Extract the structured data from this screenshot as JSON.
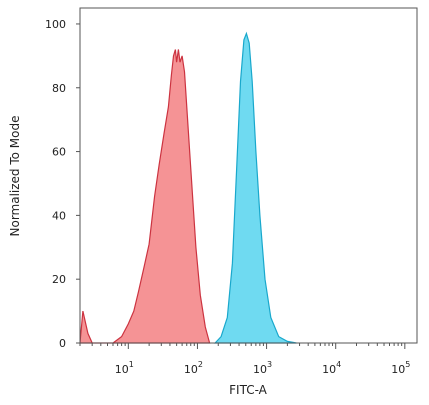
{
  "chart_data": {
    "type": "area",
    "xlabel": "FITC-A",
    "ylabel": "Normalized To Mode",
    "x_scale": "log",
    "xlim": [
      2,
      150000
    ],
    "ylim": [
      0,
      105
    ],
    "x_ticks": [
      {
        "base": "10",
        "exp": "1"
      },
      {
        "base": "10",
        "exp": "2"
      },
      {
        "base": "10",
        "exp": "3"
      },
      {
        "base": "10",
        "exp": "4"
      },
      {
        "base": "10",
        "exp": "5"
      }
    ],
    "y_ticks": [
      "0",
      "20",
      "40",
      "60",
      "80",
      "100"
    ],
    "series": [
      {
        "fill": "#f4878a",
        "stroke": "#cc3340",
        "points": [
          [
            2,
            0
          ],
          [
            2.2,
            10
          ],
          [
            2.6,
            3
          ],
          [
            3,
            0
          ],
          [
            4,
            0
          ],
          [
            6,
            0
          ],
          [
            8,
            2
          ],
          [
            10,
            6
          ],
          [
            12,
            10
          ],
          [
            14,
            16
          ],
          [
            17,
            24
          ],
          [
            20,
            31
          ],
          [
            24,
            46
          ],
          [
            28,
            56
          ],
          [
            33,
            66
          ],
          [
            38,
            74
          ],
          [
            42,
            84
          ],
          [
            45,
            90
          ],
          [
            48,
            92
          ],
          [
            50,
            88
          ],
          [
            53,
            92
          ],
          [
            56,
            88
          ],
          [
            60,
            90
          ],
          [
            65,
            85
          ],
          [
            72,
            70
          ],
          [
            80,
            55
          ],
          [
            95,
            30
          ],
          [
            110,
            15
          ],
          [
            130,
            5
          ],
          [
            150,
            0
          ]
        ]
      },
      {
        "fill": "#5fd6ef",
        "stroke": "#19a8cc",
        "points": [
          [
            180,
            0
          ],
          [
            220,
            2
          ],
          [
            270,
            8
          ],
          [
            320,
            25
          ],
          [
            370,
            55
          ],
          [
            420,
            82
          ],
          [
            470,
            95
          ],
          [
            510,
            97
          ],
          [
            560,
            94
          ],
          [
            620,
            82
          ],
          [
            700,
            60
          ],
          [
            800,
            40
          ],
          [
            950,
            20
          ],
          [
            1150,
            8
          ],
          [
            1500,
            2
          ],
          [
            2000,
            0.5
          ],
          [
            2700,
            0
          ]
        ]
      }
    ]
  }
}
